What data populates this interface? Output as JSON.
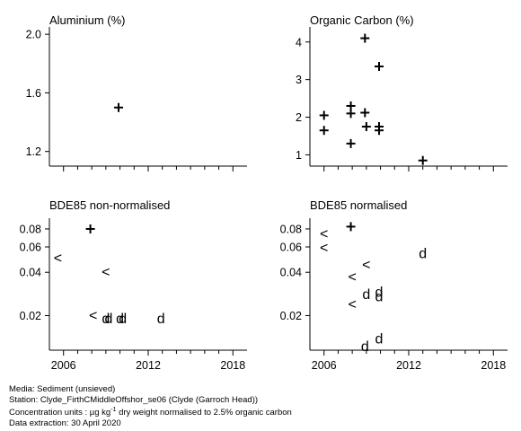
{
  "chart_data": [
    {
      "type": "scatter",
      "title": "Aluminium (%)",
      "log_y": false,
      "ylim": [
        1.1,
        2.05
      ],
      "y_ticks": [
        1.2,
        1.6,
        2.0
      ],
      "y_tick_labels": [
        "1.2",
        "1.6",
        "2.0"
      ],
      "x_range": [
        2005,
        2019
      ],
      "x_ticks": [
        2006,
        2012,
        2018
      ],
      "x_tick_labels": [],
      "points": [
        {
          "x": 2009.9,
          "y": 1.5,
          "symbol": "+"
        }
      ]
    },
    {
      "type": "scatter",
      "title": "Organic Carbon (%)",
      "log_y": false,
      "ylim": [
        0.7,
        4.4
      ],
      "y_ticks": [
        1,
        2,
        3,
        4
      ],
      "y_tick_labels": [
        "1",
        "2",
        "3",
        "4"
      ],
      "x_range": [
        2005,
        2019
      ],
      "x_ticks": [
        2006,
        2012,
        2018
      ],
      "x_tick_labels": [],
      "points": [
        {
          "x": 2006.0,
          "y": 2.05,
          "symbol": "+"
        },
        {
          "x": 2006.0,
          "y": 1.65,
          "symbol": "+"
        },
        {
          "x": 2007.9,
          "y": 2.3,
          "symbol": "+"
        },
        {
          "x": 2007.9,
          "y": 2.1,
          "symbol": "+"
        },
        {
          "x": 2007.9,
          "y": 1.3,
          "symbol": "+"
        },
        {
          "x": 2008.9,
          "y": 4.1,
          "symbol": "+"
        },
        {
          "x": 2008.9,
          "y": 2.12,
          "symbol": "+"
        },
        {
          "x": 2009.0,
          "y": 1.75,
          "symbol": "+"
        },
        {
          "x": 2009.9,
          "y": 3.35,
          "symbol": "+"
        },
        {
          "x": 2009.9,
          "y": 1.75,
          "symbol": "+"
        },
        {
          "x": 2009.9,
          "y": 1.65,
          "symbol": "+"
        },
        {
          "x": 2013.0,
          "y": 0.85,
          "symbol": "+"
        }
      ]
    },
    {
      "type": "scatter",
      "title": "BDE85 non-normalised",
      "log_y": true,
      "ylim": [
        0.0115,
        0.095
      ],
      "y_ticks": [
        0.02,
        0.04,
        0.06,
        0.08
      ],
      "y_tick_labels": [
        "0.02",
        "0.04",
        "0.06",
        "0.08"
      ],
      "x_range": [
        2005,
        2019
      ],
      "x_ticks": [
        2006,
        2012,
        2018
      ],
      "x_tick_labels": [
        "2006",
        "2012",
        "2018"
      ],
      "points": [
        {
          "x": 2005.6,
          "y": 0.05,
          "symbol": "<"
        },
        {
          "x": 2007.9,
          "y": 0.08,
          "symbol": "+"
        },
        {
          "x": 2009.0,
          "y": 0.04,
          "symbol": "<"
        },
        {
          "x": 2008.1,
          "y": 0.02,
          "symbol": "<"
        },
        {
          "x": 2009.0,
          "y": 0.019,
          "symbol": "d"
        },
        {
          "x": 2009.2,
          "y": 0.019,
          "symbol": "d"
        },
        {
          "x": 2010.0,
          "y": 0.019,
          "symbol": "d"
        },
        {
          "x": 2010.2,
          "y": 0.019,
          "symbol": "d"
        },
        {
          "x": 2012.9,
          "y": 0.019,
          "symbol": "d"
        }
      ]
    },
    {
      "type": "scatter",
      "title": "BDE85 normalised",
      "log_y": true,
      "ylim": [
        0.0115,
        0.095
      ],
      "y_ticks": [
        0.02,
        0.04,
        0.06,
        0.08
      ],
      "y_tick_labels": [
        "0.02",
        "0.04",
        "0.06",
        "0.08"
      ],
      "x_range": [
        2005,
        2019
      ],
      "x_ticks": [
        2006,
        2012,
        2018
      ],
      "x_tick_labels": [
        "2006",
        "2012",
        "2018"
      ],
      "points": [
        {
          "x": 2006.0,
          "y": 0.074,
          "symbol": "<"
        },
        {
          "x": 2006.0,
          "y": 0.059,
          "symbol": "<"
        },
        {
          "x": 2007.9,
          "y": 0.083,
          "symbol": "+"
        },
        {
          "x": 2009.0,
          "y": 0.045,
          "symbol": "<"
        },
        {
          "x": 2008.0,
          "y": 0.037,
          "symbol": "<"
        },
        {
          "x": 2008.0,
          "y": 0.024,
          "symbol": "<"
        },
        {
          "x": 2009.0,
          "y": 0.028,
          "symbol": "d"
        },
        {
          "x": 2009.9,
          "y": 0.029,
          "symbol": "d"
        },
        {
          "x": 2009.9,
          "y": 0.027,
          "symbol": "d"
        },
        {
          "x": 2013.0,
          "y": 0.054,
          "symbol": "d"
        },
        {
          "x": 2009.9,
          "y": 0.0138,
          "symbol": "d"
        },
        {
          "x": 2008.9,
          "y": 0.0122,
          "symbol": "d"
        }
      ]
    }
  ],
  "footer": {
    "line1": "Media: Sediment (unsieved)",
    "line2": "Station: Clyde_FirthCMiddleOffshor_se06 (Clyde (Garroch Head))",
    "line3_pre": "Concentration units : µg kg",
    "line3_sup": "-1",
    "line3_post": " dry weight normalised to 2.5% organic carbon",
    "line4": "Data extraction: 30 April 2020"
  }
}
